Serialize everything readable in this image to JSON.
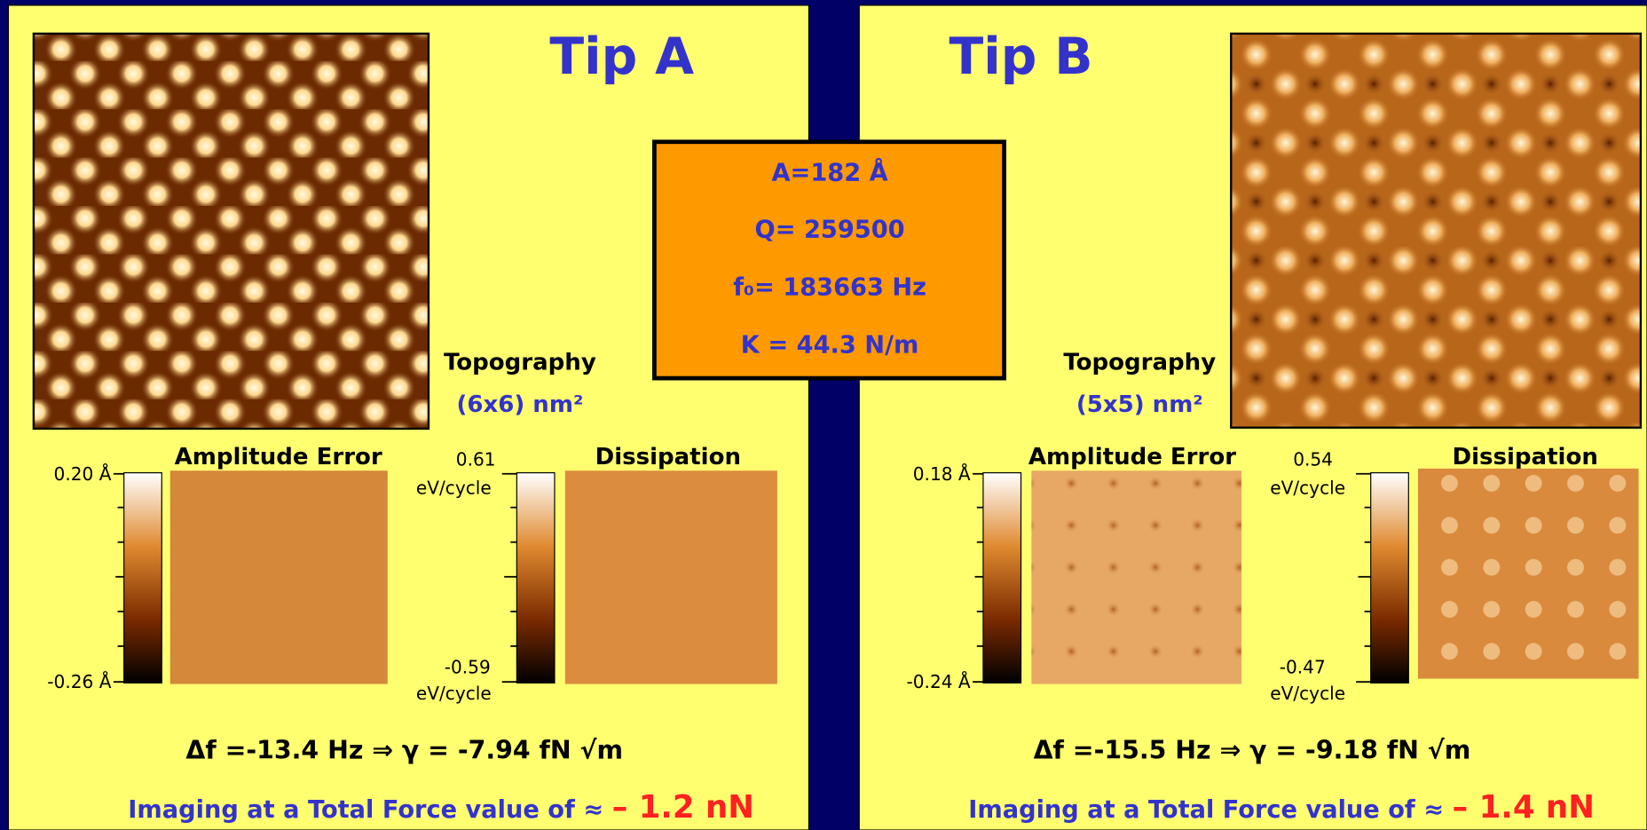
{
  "tip_a": {
    "title": "Tip A",
    "topography_label": "Topography",
    "size_label": "(6x6) nm²",
    "amplitude_error": {
      "title": "Amplitude Error",
      "max_label": "0.20 Å",
      "min_label": "-0.26 Å"
    },
    "dissipation": {
      "title": "Dissipation",
      "max_label": "0.61",
      "max_unit": "eV/cycle",
      "min_label": "-0.59",
      "min_unit": "eV/cycle"
    },
    "frequency_shift": "Δf =-13.4 Hz ⇒ γ = -7.94 fN √m",
    "force_text": "Imaging at a Total Force value of ≈",
    "force_value": "– 1.2 nN"
  },
  "parameters": [
    "A=182 Å",
    "Q= 259500",
    "f₀= 183663 Hz",
    "K = 44.3 N/m"
  ],
  "tip_b": {
    "title": "Tip B",
    "topography_label": "Topography",
    "size_label": "(5x5) nm²",
    "amplitude_error": {
      "title": "Amplitude Error",
      "max_label": "0.18 Å",
      "min_label": "-0.24 Å"
    },
    "dissipation": {
      "title": "Dissipation",
      "max_label": "0.54",
      "max_unit": "eV/cycle",
      "min_label": "-0.47",
      "min_unit": "eV/cycle"
    },
    "frequency_shift": "Δf =-15.5 Hz ⇒ γ = -9.18 fN √m",
    "force_text": "Imaging at a Total Force value of ≈",
    "force_value": "– 1.4 nN"
  }
}
